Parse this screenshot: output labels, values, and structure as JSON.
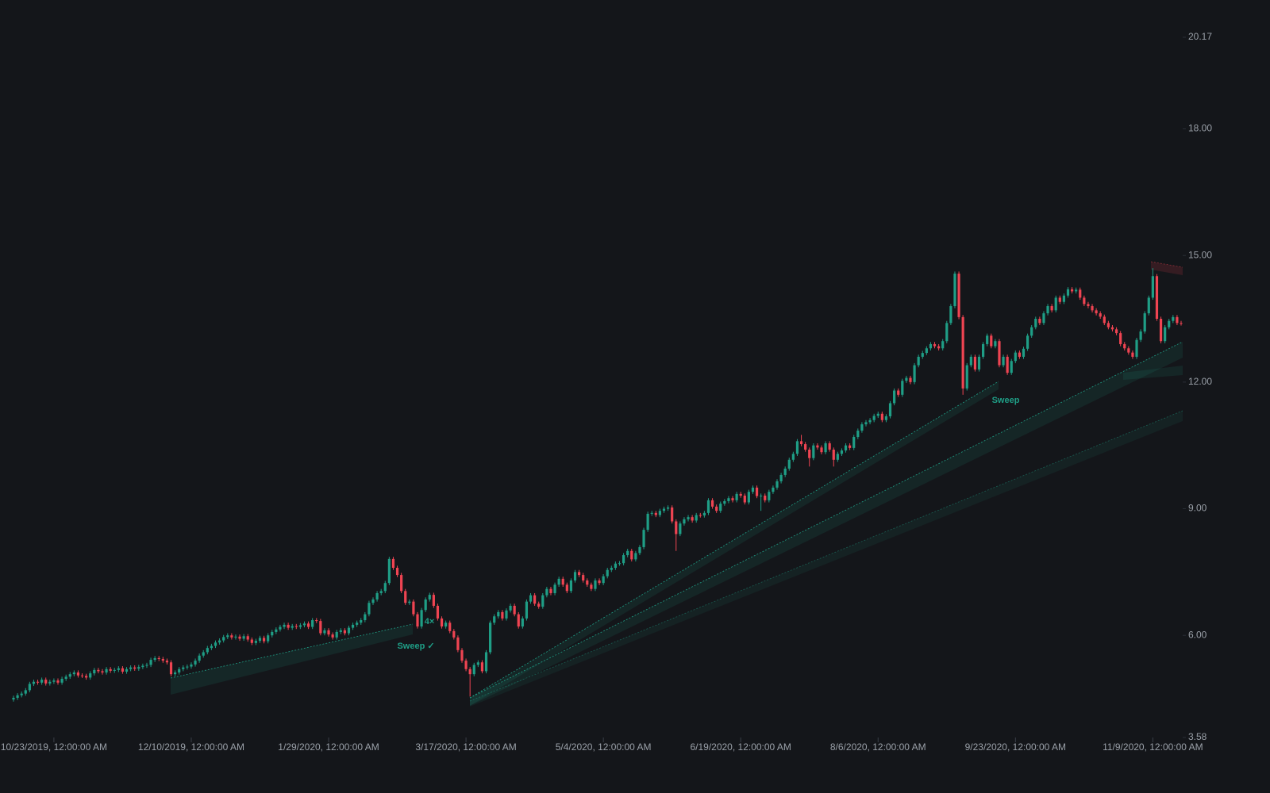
{
  "chart_data": {
    "type": "candlestick",
    "up_color": "#1f9e86",
    "down_color": "#ef4452",
    "ylim": [
      3.58,
      20.17
    ],
    "yticks": [
      3.58,
      {
        "value": 6,
        "label": "6.00"
      },
      {
        "value": 9,
        "label": "9.00"
      },
      {
        "value": 12,
        "label": "12.00"
      },
      {
        "value": 15,
        "label": "15.00"
      },
      {
        "value": 18,
        "label": "18.00"
      },
      20.17
    ],
    "annotations": [
      "Sweep ✓",
      "4×",
      "Sweep"
    ],
    "categories": [
      null,
      null,
      null,
      null,
      null,
      null,
      null,
      null,
      null,
      null,
      "10/23/2019, 12:00:00 AM",
      null,
      null,
      null,
      null,
      null,
      null,
      null,
      null,
      null,
      null,
      null,
      null,
      null,
      null,
      null,
      null,
      null,
      null,
      null,
      null,
      null,
      null,
      null,
      null,
      null,
      null,
      null,
      null,
      null,
      null,
      null,
      null,
      null,
      "12/10/2019, 12:00:00 AM",
      null,
      null,
      null,
      null,
      null,
      null,
      null,
      null,
      null,
      null,
      null,
      null,
      null,
      null,
      null,
      null,
      null,
      null,
      null,
      null,
      null,
      null,
      null,
      null,
      null,
      null,
      null,
      null,
      null,
      null,
      null,
      null,
      null,
      "1/29/2020, 12:00:00 AM",
      null,
      null,
      null,
      null,
      null,
      null,
      null,
      null,
      null,
      null,
      null,
      null,
      null,
      null,
      null,
      null,
      null,
      null,
      null,
      null,
      null,
      null,
      null,
      null,
      null,
      null,
      null,
      null,
      null,
      null,
      null,
      null,
      null,
      "3/17/2020, 12:00:00 AM",
      null,
      null,
      null,
      null,
      null,
      null,
      null,
      null,
      null,
      null,
      null,
      null,
      null,
      null,
      null,
      null,
      null,
      null,
      null,
      null,
      null,
      null,
      null,
      null,
      null,
      null,
      null,
      null,
      null,
      null,
      null,
      null,
      null,
      "5/4/2020, 12:00:00 AM",
      null,
      null,
      null,
      null,
      null,
      null,
      null,
      null,
      null,
      null,
      null,
      null,
      null,
      null,
      null,
      null,
      null,
      null,
      null,
      null,
      null,
      null,
      null,
      null,
      null,
      null,
      null,
      null,
      null,
      null,
      null,
      null,
      null,
      "6/19/2020, 12:00:00 AM",
      null,
      null,
      null,
      null,
      null,
      null,
      null,
      null,
      null,
      null,
      null,
      null,
      null,
      null,
      null,
      null,
      null,
      null,
      null,
      null,
      null,
      null,
      null,
      null,
      null,
      null,
      null,
      null,
      null,
      null,
      null,
      null,
      null,
      "8/6/2020, 12:00:00 AM",
      null,
      null,
      null,
      null,
      null,
      null,
      null,
      null,
      null,
      null,
      null,
      null,
      null,
      null,
      null,
      null,
      null,
      null,
      null,
      null,
      null,
      null,
      null,
      null,
      null,
      null,
      null,
      null,
      null,
      null,
      null,
      null,
      null,
      "9/23/2020, 12:00:00 AM",
      null,
      null,
      null,
      null,
      null,
      null,
      null,
      null,
      null,
      null,
      null,
      null,
      null,
      null,
      null,
      null,
      null,
      null,
      null,
      null,
      null,
      null,
      null,
      null,
      null,
      null,
      null,
      null,
      null,
      null,
      null,
      null,
      null,
      "11/9/2020, 12:00:00 AM",
      null,
      null,
      null,
      null,
      null,
      null,
      null
    ],
    "open": [
      4.48,
      4.52,
      4.58,
      4.62,
      4.7,
      4.85,
      4.9,
      4.88,
      4.95,
      4.86,
      4.9,
      4.93,
      4.88,
      4.97,
      5.02,
      5.08,
      5.12,
      5.05,
      5.04,
      5.0,
      5.1,
      5.18,
      5.15,
      5.12,
      5.2,
      5.16,
      5.18,
      5.22,
      5.14,
      5.2,
      5.24,
      5.21,
      5.25,
      5.28,
      5.3,
      5.42,
      5.46,
      5.44,
      5.4,
      5.36,
      5.08,
      5.12,
      5.2,
      5.24,
      5.26,
      5.31,
      5.4,
      5.52,
      5.6,
      5.7,
      5.75,
      5.83,
      5.88,
      5.96,
      6.0,
      5.95,
      5.97,
      5.92,
      5.98,
      5.9,
      5.82,
      5.87,
      5.94,
      5.86,
      6.0,
      6.08,
      6.14,
      6.2,
      6.25,
      6.18,
      6.22,
      6.2,
      6.24,
      6.28,
      6.2,
      6.36,
      6.34,
      6.05,
      6.12,
      6.02,
      5.95,
      6.08,
      6.12,
      6.05,
      6.18,
      6.25,
      6.3,
      6.36,
      6.5,
      6.77,
      6.85,
      7.0,
      7.05,
      7.24,
      7.81,
      7.6,
      7.43,
      7.05,
      6.77,
      6.8,
      6.5,
      6.21,
      6.6,
      6.85,
      6.96,
      6.7,
      6.4,
      6.21,
      6.3,
      6.1,
      5.95,
      5.65,
      5.4,
      5.2,
      5.08,
      5.3,
      5.36,
      5.15,
      5.6,
      6.3,
      6.45,
      6.55,
      6.4,
      6.59,
      6.7,
      6.5,
      6.21,
      6.4,
      6.8,
      6.95,
      6.75,
      6.68,
      6.95,
      7.1,
      7.0,
      7.2,
      7.34,
      7.2,
      7.05,
      7.3,
      7.5,
      7.43,
      7.3,
      7.2,
      7.1,
      7.3,
      7.24,
      7.4,
      7.55,
      7.6,
      7.7,
      7.71,
      7.9,
      8.0,
      7.8,
      7.95,
      8.09,
      8.5,
      8.88,
      8.9,
      8.85,
      8.95,
      9.0,
      9.03,
      8.7,
      8.4,
      8.65,
      8.75,
      8.8,
      8.72,
      8.85,
      8.84,
      8.9,
      9.2,
      9.05,
      8.95,
      9.12,
      9.18,
      9.25,
      9.2,
      9.35,
      9.31,
      9.15,
      9.4,
      9.5,
      9.3,
      9.31,
      9.2,
      9.4,
      9.5,
      9.65,
      9.8,
      9.95,
      10.16,
      10.3,
      10.6,
      10.53,
      10.4,
      10.2,
      10.5,
      10.45,
      10.34,
      10.55,
      10.4,
      10.16,
      10.3,
      10.38,
      10.5,
      10.44,
      10.7,
      10.85,
      11.0,
      11.05,
      11.1,
      11.2,
      11.25,
      11.1,
      11.19,
      11.5,
      11.8,
      11.7,
      12.03,
      12.1,
      12.0,
      12.4,
      12.6,
      12.69,
      12.8,
      12.9,
      12.85,
      12.8,
      12.97,
      13.4,
      13.8,
      14.57,
      13.54,
      11.85,
      12.4,
      12.6,
      12.3,
      12.6,
      12.9,
      13.1,
      12.85,
      12.97,
      12.4,
      12.6,
      12.22,
      12.5,
      12.7,
      12.6,
      12.79,
      13.1,
      13.3,
      13.5,
      13.4,
      13.63,
      13.8,
      13.7,
      14.0,
      13.9,
      14.05,
      14.2,
      14.15,
      14.19,
      14.0,
      13.85,
      13.8,
      13.7,
      13.63,
      13.55,
      13.4,
      13.3,
      13.25,
      13.16,
      12.9,
      12.8,
      12.7,
      12.6,
      13.0,
      13.2,
      13.63,
      14.0,
      14.51,
      13.5,
      12.97,
      13.3,
      13.45,
      13.54,
      13.4
    ],
    "high": [
      4.57,
      4.63,
      4.67,
      4.75,
      4.9,
      4.95,
      4.95,
      5.0,
      5.0,
      4.95,
      4.98,
      4.98,
      5.02,
      5.07,
      5.13,
      5.17,
      5.17,
      5.1,
      5.09,
      5.15,
      5.23,
      5.23,
      5.2,
      5.25,
      5.25,
      5.23,
      5.27,
      5.27,
      5.25,
      5.29,
      5.29,
      5.3,
      5.33,
      5.35,
      5.47,
      5.51,
      5.51,
      5.49,
      5.45,
      5.41,
      5.17,
      5.25,
      5.29,
      5.31,
      5.36,
      5.45,
      5.57,
      5.65,
      5.75,
      5.8,
      5.88,
      5.93,
      6.01,
      6.05,
      6.05,
      6.02,
      6.02,
      6.03,
      6.03,
      5.95,
      5.92,
      5.99,
      5.99,
      6.05,
      6.13,
      6.19,
      6.25,
      6.3,
      6.3,
      6.27,
      6.27,
      6.29,
      6.33,
      6.33,
      6.41,
      6.41,
      6.39,
      6.17,
      6.17,
      6.07,
      6.13,
      6.17,
      6.17,
      6.23,
      6.3,
      6.35,
      6.41,
      6.55,
      6.82,
      6.9,
      7.05,
      7.1,
      7.29,
      7.86,
      7.86,
      7.65,
      7.48,
      7.1,
      6.85,
      6.85,
      6.55,
      6.65,
      6.9,
      7.01,
      7.01,
      6.75,
      6.45,
      6.35,
      6.35,
      6.15,
      6.0,
      5.7,
      5.45,
      5.25,
      5.35,
      5.41,
      5.41,
      5.65,
      6.35,
      6.5,
      6.6,
      6.6,
      6.64,
      6.75,
      6.75,
      6.55,
      6.45,
      6.85,
      7.0,
      7.0,
      6.8,
      7.0,
      7.15,
      7.15,
      7.25,
      7.39,
      7.39,
      7.25,
      7.35,
      7.55,
      7.55,
      7.48,
      7.35,
      7.25,
      7.35,
      7.35,
      7.45,
      7.6,
      7.65,
      7.75,
      7.76,
      7.95,
      8.05,
      8.05,
      8.0,
      8.14,
      8.55,
      8.93,
      8.95,
      8.95,
      9.0,
      9.05,
      9.08,
      9.08,
      8.75,
      8.7,
      8.8,
      8.85,
      8.85,
      8.9,
      8.9,
      8.95,
      9.25,
      9.25,
      9.1,
      9.17,
      9.23,
      9.3,
      9.3,
      9.4,
      9.4,
      9.36,
      9.45,
      9.55,
      9.55,
      9.36,
      9.36,
      9.45,
      9.55,
      9.7,
      9.85,
      10.0,
      10.21,
      10.35,
      10.65,
      10.75,
      10.58,
      10.45,
      10.55,
      10.55,
      10.5,
      10.6,
      10.6,
      10.45,
      10.35,
      10.43,
      10.55,
      10.55,
      10.75,
      10.9,
      11.05,
      11.1,
      11.15,
      11.25,
      11.3,
      11.3,
      11.24,
      11.55,
      11.85,
      11.85,
      12.08,
      12.15,
      12.15,
      12.45,
      12.65,
      12.74,
      12.85,
      12.95,
      12.95,
      12.9,
      13.02,
      13.45,
      13.85,
      14.62,
      14.62,
      13.59,
      12.45,
      12.65,
      12.65,
      12.65,
      12.95,
      13.15,
      13.15,
      13.02,
      13.02,
      12.65,
      12.65,
      12.55,
      12.75,
      12.75,
      12.84,
      13.15,
      13.35,
      13.55,
      13.55,
      13.68,
      13.85,
      13.85,
      14.05,
      14.05,
      14.1,
      14.25,
      14.25,
      14.24,
      14.24,
      14.05,
      13.9,
      13.85,
      13.75,
      13.68,
      13.6,
      13.45,
      13.35,
      13.3,
      13.21,
      12.95,
      12.85,
      12.75,
      13.05,
      13.25,
      13.68,
      14.05,
      14.7,
      14.56,
      13.55,
      13.35,
      13.5,
      13.59,
      13.59,
      13.45
    ],
    "low": [
      4.43,
      4.47,
      4.53,
      4.57,
      4.65,
      4.8,
      4.83,
      4.83,
      4.81,
      4.81,
      4.85,
      4.83,
      4.83,
      4.92,
      4.97,
      5.03,
      5.0,
      4.99,
      4.95,
      4.95,
      5.05,
      5.1,
      5.07,
      5.07,
      5.11,
      5.11,
      5.13,
      5.09,
      5.09,
      5.15,
      5.16,
      5.16,
      5.2,
      5.23,
      5.25,
      5.37,
      5.39,
      5.35,
      5.31,
      5.03,
      5.03,
      5.07,
      5.15,
      5.19,
      5.21,
      5.26,
      5.35,
      5.47,
      5.55,
      5.65,
      5.7,
      5.78,
      5.83,
      5.91,
      5.9,
      5.9,
      5.87,
      5.87,
      5.85,
      5.77,
      5.77,
      5.82,
      5.81,
      5.81,
      5.95,
      6.03,
      6.09,
      6.15,
      6.13,
      6.13,
      6.15,
      6.15,
      6.19,
      6.15,
      6.15,
      6.29,
      6.0,
      6.0,
      5.97,
      5.9,
      5.9,
      6.03,
      6.0,
      6.0,
      6.13,
      6.2,
      6.25,
      6.31,
      6.45,
      6.72,
      6.8,
      6.95,
      7.0,
      7.19,
      7.55,
      7.38,
      7.0,
      6.72,
      6.72,
      6.45,
      6.16,
      6.16,
      6.55,
      6.8,
      6.65,
      6.35,
      6.16,
      6.16,
      6.05,
      5.9,
      5.6,
      5.35,
      5.15,
      4.55,
      5.03,
      5.25,
      5.1,
      5.1,
      5.55,
      6.25,
      6.4,
      6.35,
      6.35,
      6.54,
      6.45,
      6.16,
      6.16,
      6.35,
      6.75,
      6.7,
      6.63,
      6.63,
      6.9,
      6.95,
      6.95,
      7.15,
      7.15,
      7.0,
      7.0,
      7.25,
      7.38,
      7.25,
      7.15,
      7.05,
      7.05,
      7.19,
      7.19,
      7.35,
      7.5,
      7.55,
      7.65,
      7.66,
      7.85,
      7.75,
      7.75,
      7.9,
      8.04,
      8.45,
      8.83,
      8.8,
      8.8,
      8.9,
      8.95,
      8.65,
      8.0,
      8.35,
      8.6,
      8.7,
      8.67,
      8.67,
      8.79,
      8.79,
      8.85,
      9.0,
      8.9,
      8.9,
      9.07,
      9.13,
      9.15,
      9.15,
      9.26,
      9.1,
      9.1,
      9.35,
      9.25,
      8.95,
      9.15,
      9.15,
      9.35,
      9.45,
      9.6,
      9.75,
      9.9,
      10.11,
      10.25,
      10.48,
      10.35,
      10.0,
      10.15,
      10.4,
      10.29,
      10.29,
      10.35,
      10.0,
      10.11,
      10.25,
      10.33,
      10.39,
      10.39,
      10.65,
      10.8,
      10.95,
      11.0,
      11.05,
      11.15,
      11.05,
      11.05,
      11.14,
      11.45,
      11.65,
      11.65,
      11.98,
      11.95,
      11.95,
      12.35,
      12.55,
      12.64,
      12.75,
      12.8,
      12.75,
      12.75,
      12.92,
      13.35,
      13.75,
      13.49,
      11.7,
      11.8,
      12.35,
      12.25,
      12.25,
      12.55,
      12.85,
      12.8,
      12.8,
      12.35,
      12.35,
      12.17,
      12.17,
      12.45,
      12.55,
      12.55,
      12.74,
      13.05,
      13.25,
      13.35,
      13.35,
      13.58,
      13.65,
      13.65,
      13.85,
      13.85,
      14.0,
      14.1,
      14.1,
      13.95,
      13.8,
      13.75,
      13.65,
      13.58,
      13.5,
      13.35,
      13.25,
      13.2,
      13.11,
      12.85,
      12.75,
      12.65,
      12.55,
      12.55,
      12.95,
      13.15,
      13.58,
      13.95,
      13.45,
      12.92,
      12.92,
      13.25,
      13.4,
      13.35,
      13.34
    ],
    "close": [
      4.52,
      4.58,
      4.62,
      4.7,
      4.85,
      4.9,
      4.88,
      4.95,
      4.86,
      4.9,
      4.93,
      4.88,
      4.97,
      5.02,
      5.08,
      5.12,
      5.05,
      5.04,
      5.0,
      5.1,
      5.18,
      5.15,
      5.12,
      5.2,
      5.16,
      5.18,
      5.22,
      5.14,
      5.2,
      5.24,
      5.21,
      5.25,
      5.28,
      5.3,
      5.42,
      5.46,
      5.44,
      5.4,
      5.36,
      5.08,
      5.12,
      5.2,
      5.24,
      5.26,
      5.31,
      5.4,
      5.52,
      5.6,
      5.7,
      5.75,
      5.83,
      5.88,
      5.96,
      6.0,
      5.95,
      5.97,
      5.92,
      5.98,
      5.9,
      5.82,
      5.87,
      5.94,
      5.86,
      6.0,
      6.08,
      6.14,
      6.2,
      6.25,
      6.18,
      6.22,
      6.2,
      6.24,
      6.28,
      6.2,
      6.36,
      6.34,
      6.05,
      6.12,
      6.02,
      5.95,
      6.08,
      6.12,
      6.05,
      6.18,
      6.25,
      6.3,
      6.36,
      6.5,
      6.77,
      6.85,
      7.0,
      7.05,
      7.24,
      7.81,
      7.6,
      7.43,
      7.05,
      6.77,
      6.8,
      6.5,
      6.21,
      6.6,
      6.85,
      6.96,
      6.7,
      6.4,
      6.21,
      6.3,
      6.1,
      5.95,
      5.65,
      5.4,
      5.2,
      5.08,
      5.3,
      5.36,
      5.15,
      5.6,
      6.3,
      6.45,
      6.55,
      6.4,
      6.59,
      6.7,
      6.5,
      6.21,
      6.4,
      6.8,
      6.95,
      6.75,
      6.68,
      6.95,
      7.1,
      7.0,
      7.2,
      7.34,
      7.2,
      7.05,
      7.3,
      7.5,
      7.43,
      7.3,
      7.2,
      7.1,
      7.3,
      7.24,
      7.4,
      7.55,
      7.6,
      7.7,
      7.71,
      7.9,
      8.0,
      7.8,
      7.95,
      8.09,
      8.5,
      8.88,
      8.9,
      8.85,
      8.95,
      9.0,
      9.03,
      8.7,
      8.4,
      8.65,
      8.75,
      8.8,
      8.72,
      8.85,
      8.84,
      8.9,
      9.2,
      9.05,
      8.95,
      9.12,
      9.18,
      9.25,
      9.2,
      9.35,
      9.31,
      9.15,
      9.4,
      9.5,
      9.3,
      9.31,
      9.2,
      9.4,
      9.5,
      9.65,
      9.8,
      9.95,
      10.16,
      10.3,
      10.6,
      10.53,
      10.4,
      10.2,
      10.5,
      10.45,
      10.34,
      10.55,
      10.4,
      10.16,
      10.3,
      10.38,
      10.5,
      10.44,
      10.7,
      10.85,
      11.0,
      11.05,
      11.1,
      11.2,
      11.25,
      11.1,
      11.19,
      11.5,
      11.8,
      11.7,
      12.03,
      12.1,
      12.0,
      12.4,
      12.6,
      12.69,
      12.8,
      12.9,
      12.85,
      12.8,
      12.97,
      13.4,
      13.8,
      14.57,
      13.54,
      11.85,
      12.4,
      12.6,
      12.3,
      12.6,
      12.9,
      13.1,
      12.85,
      12.97,
      12.4,
      12.6,
      12.22,
      12.5,
      12.7,
      12.6,
      12.79,
      13.1,
      13.3,
      13.5,
      13.4,
      13.63,
      13.8,
      13.7,
      14.0,
      13.9,
      14.05,
      14.2,
      14.15,
      14.19,
      14.0,
      13.85,
      13.8,
      13.7,
      13.63,
      13.55,
      13.4,
      13.3,
      13.25,
      13.16,
      12.9,
      12.8,
      12.7,
      12.6,
      13.0,
      13.2,
      13.63,
      14.0,
      14.51,
      13.5,
      12.97,
      13.3,
      13.45,
      13.54,
      13.4,
      13.39
    ]
  }
}
